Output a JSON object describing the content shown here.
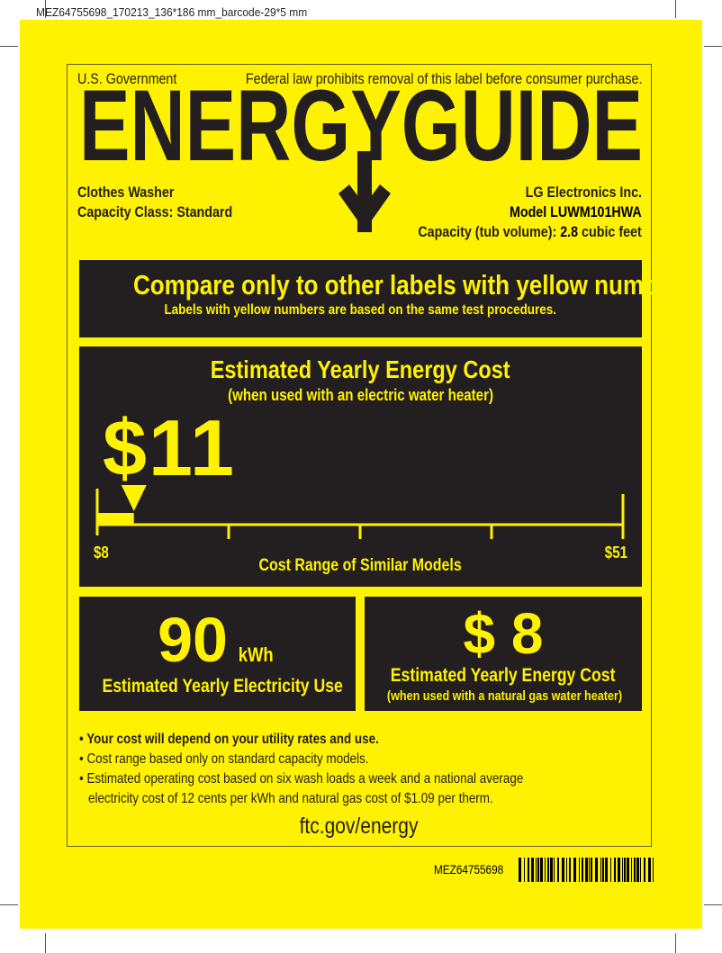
{
  "print_spec": "MEZ64755698_170213_136*186 mm_barcode-29*5 mm",
  "header": {
    "government": "U.S. Government",
    "federal_notice": "Federal law prohibits removal of this label before consumer purchase.",
    "title": "ENERGYGUIDE"
  },
  "product": {
    "type": "Clothes Washer",
    "capacity_class": "Capacity Class: Standard",
    "manufacturer": "LG Electronics Inc.",
    "model": "Model LUWM101HWA",
    "capacity_label": "Capacity (tub volume):",
    "capacity_value": "2.8",
    "capacity_unit": "cubic feet"
  },
  "compare": {
    "headline": "Compare only to other labels with yellow numbers.",
    "subline": "Labels with yellow numbers are based on the same test procedures."
  },
  "energy_cost": {
    "title": "Estimated Yearly Energy Cost",
    "subtitle": "(when used with an electric water heater)",
    "value": "$11",
    "value_number": 11,
    "range_min": 8,
    "range_max": 51,
    "range_min_label": "$8",
    "range_max_label": "$51",
    "range_caption": "Cost Range of Similar Models"
  },
  "electricity": {
    "value": "90",
    "unit": "kWh",
    "caption": "Estimated Yearly Electricity Use"
  },
  "gas_cost": {
    "value": "$ 8",
    "title": "Estimated Yearly Energy Cost",
    "subtitle": "(when used with a natural gas water heater)"
  },
  "notes": [
    "Your cost will depend on your utility rates and use.",
    "Cost range based only on standard capacity models.",
    "Estimated operating cost based on six wash loads a week and a national average",
    "electricity cost of 12 cents per kWh and natural gas cost of $1.09 per therm."
  ],
  "website": "ftc.gov/energy",
  "barcode_text": "MEZ64755698",
  "colors": {
    "label_yellow": "#fff200",
    "panel_dark": "#231f20"
  }
}
